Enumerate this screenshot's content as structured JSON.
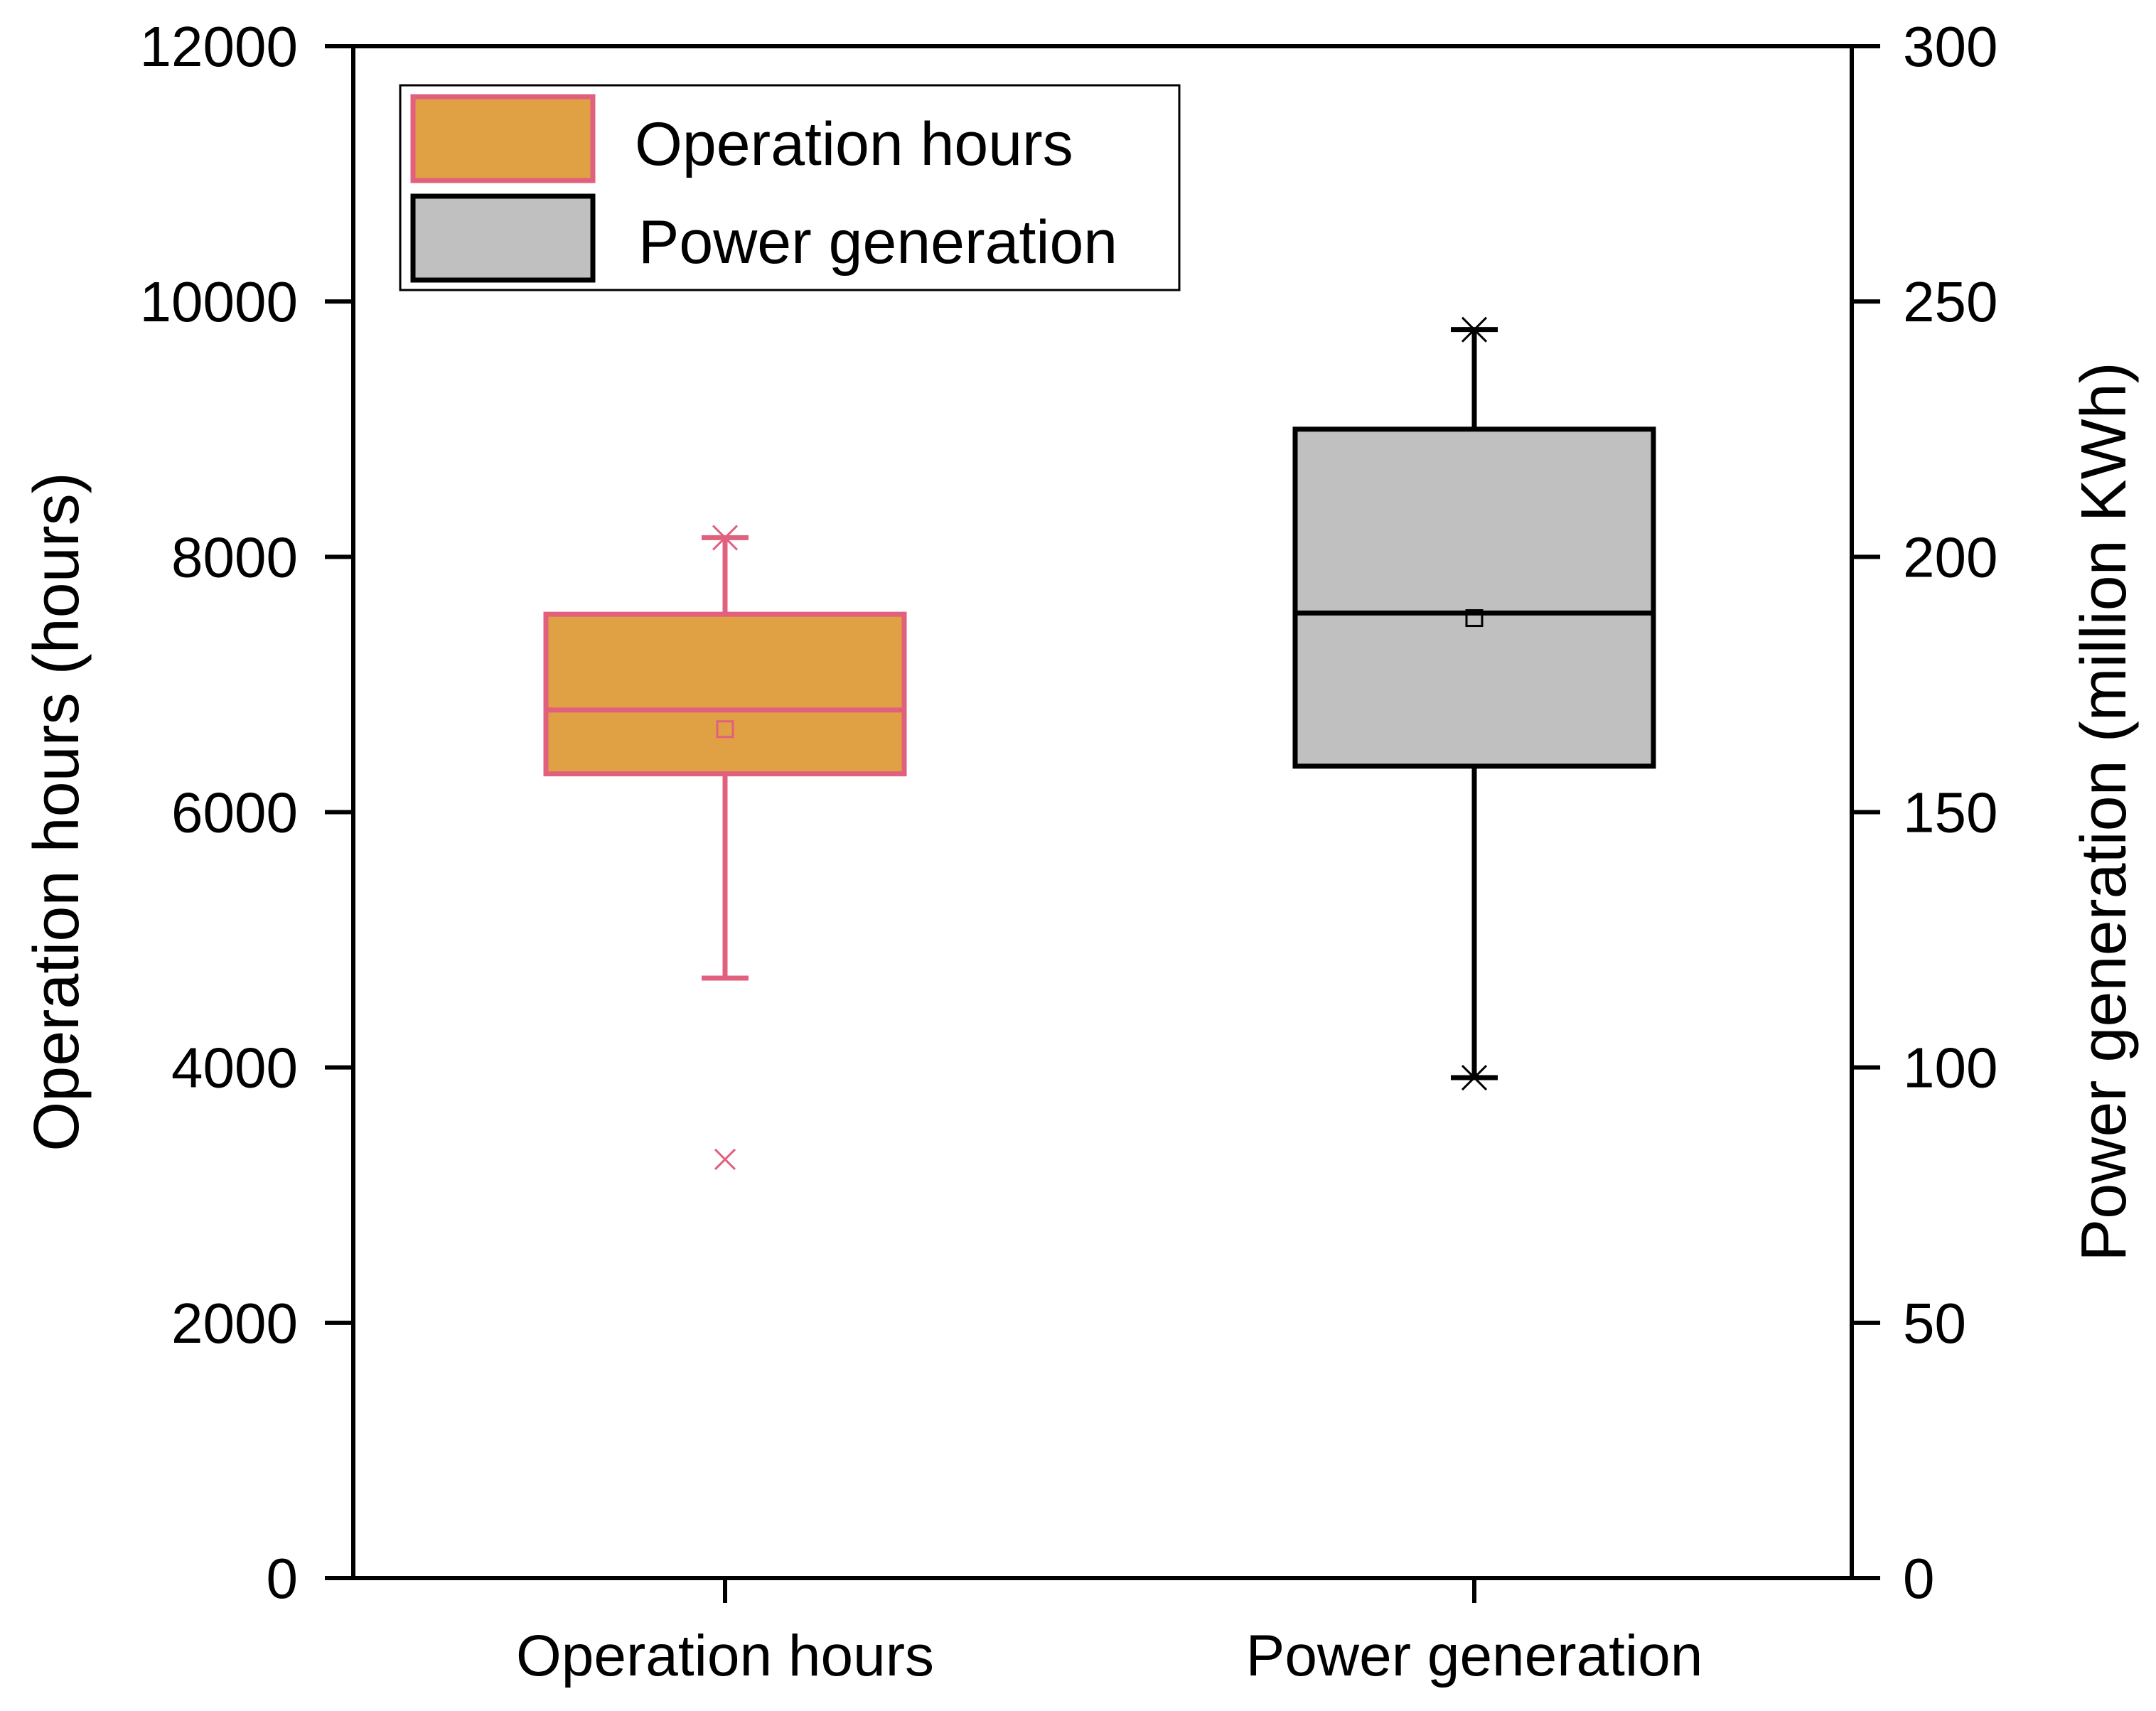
{
  "chart_data": {
    "type": "box",
    "title": "",
    "categories": [
      "Operation hours",
      "Power generation"
    ],
    "left_axis": {
      "label": "Operation hours (hours)",
      "ylim": [
        0,
        12000
      ],
      "ticks": [
        "0",
        "2000",
        "4000",
        "6000",
        "8000",
        "10000",
        "12000"
      ]
    },
    "right_axis": {
      "label": "Power generation (million KWh)",
      "ylim": [
        0,
        300
      ],
      "ticks": [
        "0",
        "50",
        "100",
        "150",
        "200",
        "250",
        "300"
      ]
    },
    "legend": {
      "placement": "top-left",
      "entries": [
        {
          "label": "Operation hours",
          "fill": "#E0A044",
          "stroke": "#E0607E"
        },
        {
          "label": "Power generation",
          "fill": "#C0C0C0",
          "stroke": "#000000"
        }
      ]
    },
    "series": [
      {
        "name": "Operation hours",
        "axis": "left",
        "fill": "#E0A044",
        "stroke": "#E0607E",
        "whisker_low": 4700,
        "q1": 6300,
        "median": 6800,
        "mean": 6650,
        "q3": 7550,
        "whisker_high": 8150,
        "max_marker": 8150,
        "outliers": [
          3280
        ]
      },
      {
        "name": "Power generation",
        "axis": "right",
        "fill": "#C0C0C0",
        "stroke": "#000000",
        "whisker_low": 98,
        "q1": 159,
        "median": 189,
        "mean": 188,
        "q3": 225,
        "whisker_high": 244.5,
        "max_marker": 244.5,
        "min_marker": 98,
        "outliers": []
      }
    ]
  }
}
